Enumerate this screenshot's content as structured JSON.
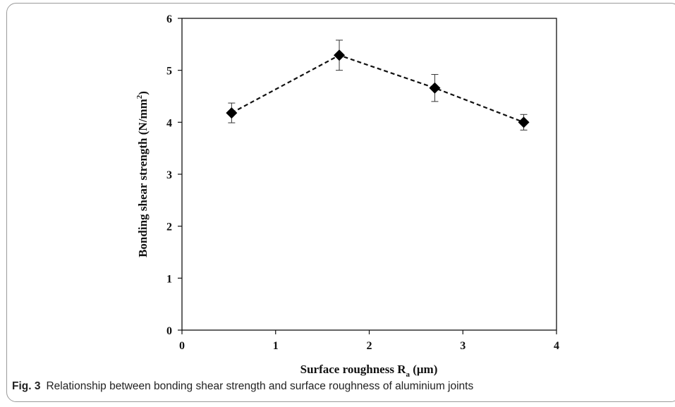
{
  "caption": {
    "label": "Fig. 3",
    "text": "Relationship between bonding shear strength and surface roughness of aluminium joints"
  },
  "chart_data": {
    "type": "scatter",
    "connected": true,
    "line_style": "dashed",
    "marker": "diamond",
    "xlabel_main": "Surface roughness R",
    "xlabel_subscript": "a",
    "xlabel_unit": " (μm)",
    "ylabel_main": "Bonding shear strength  (N/mm",
    "ylabel_superscript": "2",
    "ylabel_end": ")",
    "xlim": [
      0,
      4
    ],
    "ylim": [
      0,
      6
    ],
    "x_ticks": [
      0,
      1,
      2,
      3,
      4
    ],
    "y_ticks": [
      0,
      1,
      2,
      3,
      4,
      5,
      6
    ],
    "grid": false,
    "legend": "none",
    "series": [
      {
        "x": [
          0.53,
          1.68,
          2.7,
          3.65
        ],
        "y": [
          4.18,
          5.29,
          4.66,
          4.0
        ],
        "error": [
          0.19,
          0.29,
          0.26,
          0.15
        ]
      }
    ],
    "colors": {
      "line": "#111111",
      "marker": "#000000"
    }
  }
}
